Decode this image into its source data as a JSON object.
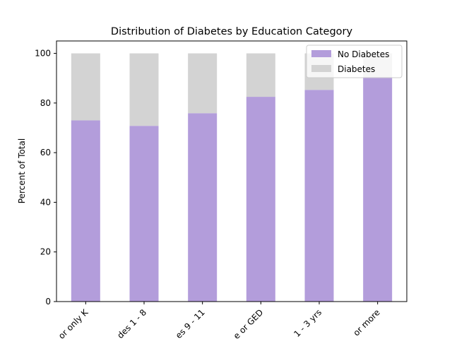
{
  "chart_data": {
    "type": "bar",
    "stacked": true,
    "title": "Distribution of Diabetes by Education Category",
    "xlabel": "",
    "ylabel": "Percent of Total",
    "ylim": [
      0,
      105
    ],
    "yticks": [
      "0",
      "20",
      "40",
      "60",
      "80",
      "100"
    ],
    "categories": [
      "or only K",
      "des 1 - 8",
      "es 9 - 11",
      "e or GED",
      "1 - 3 yrs",
      "or more"
    ],
    "series": [
      {
        "name": "No Diabetes",
        "color": "#b39ddb",
        "values": [
          73.0,
          70.8,
          75.9,
          82.5,
          85.3,
          90.5
        ]
      },
      {
        "name": "Diabetes",
        "color": "#d3d3d3",
        "values": [
          27.0,
          29.2,
          24.1,
          17.5,
          14.7,
          9.5
        ]
      }
    ],
    "legend_position": "top-right",
    "grid": false
  }
}
